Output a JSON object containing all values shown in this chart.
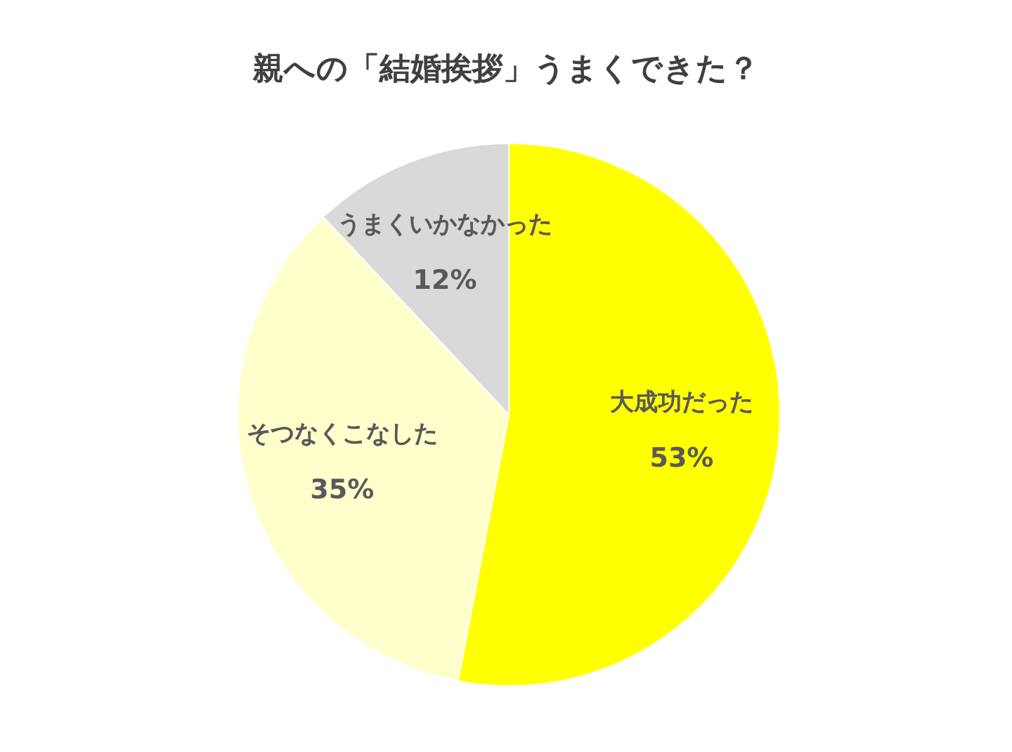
{
  "chart_data": {
    "type": "pie",
    "title": "親への「結婚挨拶」うまくできた？",
    "categories": [
      "大成功だった",
      "そつなくこなした",
      "うまくいかなかった"
    ],
    "values": [
      53,
      35,
      12
    ],
    "value_labels": [
      "53%",
      "35%",
      "12%"
    ],
    "colors": [
      "#ffff00",
      "#ffffcc",
      "#d9d9d9"
    ]
  }
}
